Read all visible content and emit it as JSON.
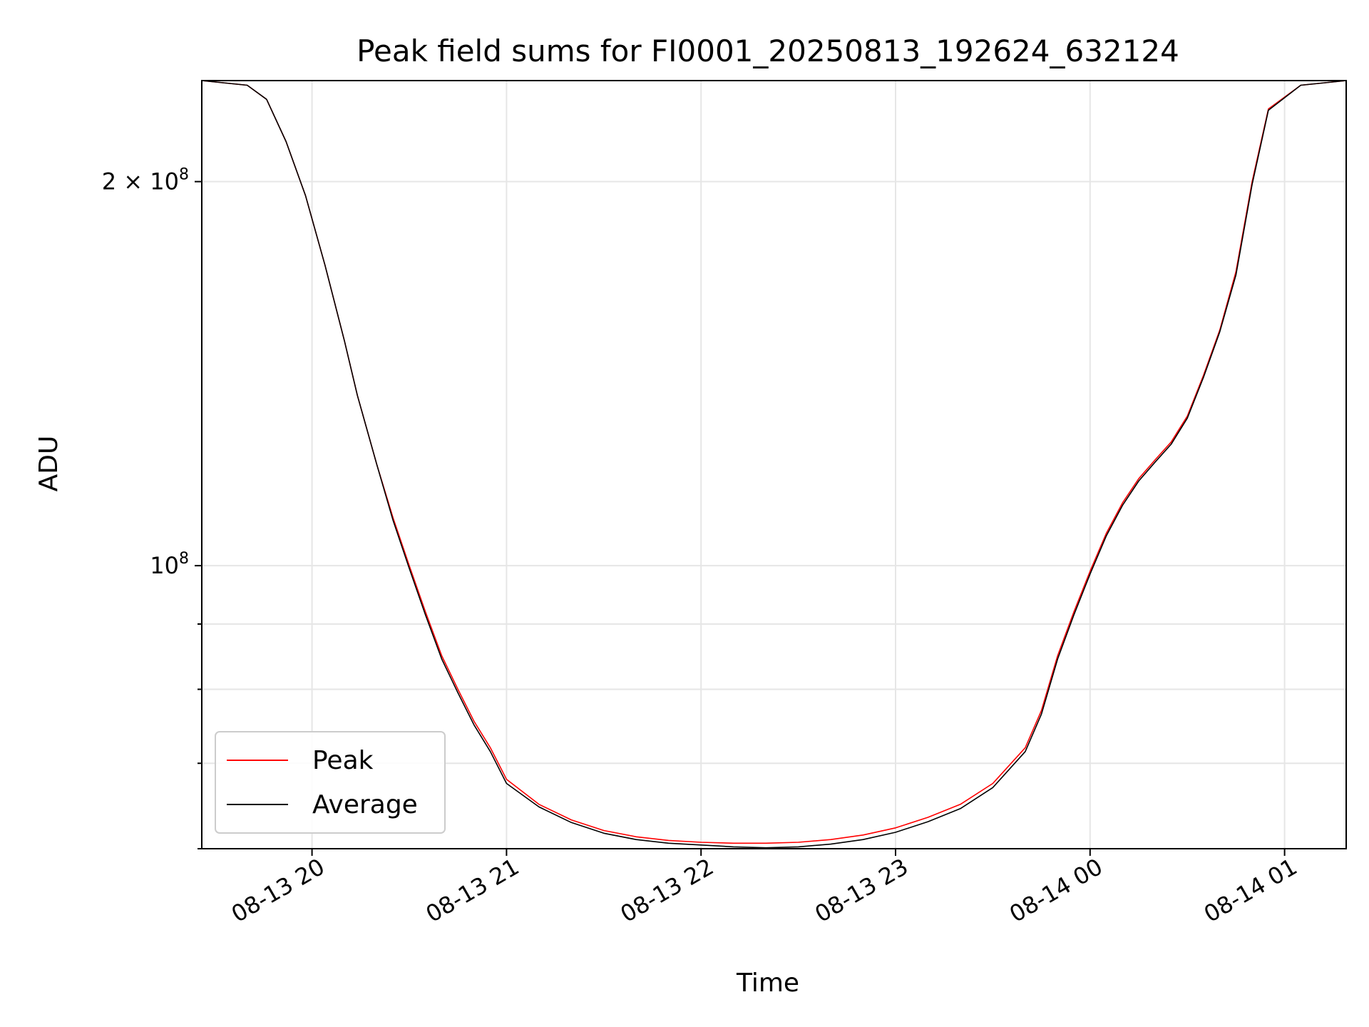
{
  "chart_data": {
    "type": "line",
    "title": "Peak field sums for FI0001_20250813_192624_632124",
    "xlabel": "Time",
    "ylabel": "ADU",
    "x_scale": "time",
    "y_scale": "log",
    "xlim": [
      "2025-08-13 19:26",
      "2025-08-14 01:19"
    ],
    "ylim": [
      60000000,
      240000000
    ],
    "grid": true,
    "legend_position": "lower-left",
    "x_ticks": [
      {
        "value": "2025-08-13 20:00",
        "label": "08-13 20"
      },
      {
        "value": "2025-08-13 21:00",
        "label": "08-13 21"
      },
      {
        "value": "2025-08-13 22:00",
        "label": "08-13 22"
      },
      {
        "value": "2025-08-13 23:00",
        "label": "08-13 23"
      },
      {
        "value": "2025-08-14 00:00",
        "label": "08-14 00"
      },
      {
        "value": "2025-08-14 01:00",
        "label": "08-14 01"
      }
    ],
    "y_ticks_major": [
      {
        "value": 100000000,
        "base": "10",
        "exponent": "8"
      },
      {
        "value": 200000000,
        "mantissa": "2 × ",
        "base": "10",
        "exponent": "8"
      }
    ],
    "y_ticks_minor": [
      60000000,
      70000000,
      80000000,
      90000000
    ],
    "series": [
      {
        "name": "Peak",
        "color": "#ff0000",
        "x": [
          "2025-08-13 19:26",
          "2025-08-13 19:40",
          "2025-08-13 19:46",
          "2025-08-13 19:52",
          "2025-08-13 19:58",
          "2025-08-13 20:04",
          "2025-08-13 20:10",
          "2025-08-13 20:14",
          "2025-08-13 20:20",
          "2025-08-13 20:25",
          "2025-08-13 20:30",
          "2025-08-13 20:35",
          "2025-08-13 20:40",
          "2025-08-13 20:45",
          "2025-08-13 20:50",
          "2025-08-13 20:55",
          "2025-08-13 21:00",
          "2025-08-13 21:10",
          "2025-08-13 21:20",
          "2025-08-13 21:30",
          "2025-08-13 21:40",
          "2025-08-13 21:50",
          "2025-08-13 22:00",
          "2025-08-13 22:10",
          "2025-08-13 22:20",
          "2025-08-13 22:30",
          "2025-08-13 22:40",
          "2025-08-13 22:50",
          "2025-08-13 23:00",
          "2025-08-13 23:10",
          "2025-08-13 23:20",
          "2025-08-13 23:30",
          "2025-08-13 23:40",
          "2025-08-13 23:45",
          "2025-08-13 23:50",
          "2025-08-13 23:55",
          "2025-08-14 00:00",
          "2025-08-14 00:05",
          "2025-08-14 00:10",
          "2025-08-14 00:15",
          "2025-08-14 00:20",
          "2025-08-14 00:25",
          "2025-08-14 00:30",
          "2025-08-14 00:35",
          "2025-08-14 00:40",
          "2025-08-14 00:45",
          "2025-08-14 00:50",
          "2025-08-14 00:55",
          "2025-08-14 01:05",
          "2025-08-14 01:19"
        ],
        "y": [
          240000000,
          238000000,
          232000000,
          215000000,
          195000000,
          172000000,
          150000000,
          136000000,
          120000000,
          109000000,
          100000000,
          92000000,
          85000000,
          80000000,
          75500000,
          72000000,
          68000000,
          65000000,
          63200000,
          62000000,
          61300000,
          60900000,
          60700000,
          60600000,
          60600000,
          60700000,
          61000000,
          61500000,
          62300000,
          63500000,
          65000000,
          67500000,
          72000000,
          77000000,
          85000000,
          92000000,
          99000000,
          106000000,
          112000000,
          117000000,
          121000000,
          125000000,
          131000000,
          141000000,
          153000000,
          170000000,
          200000000,
          228000000,
          238000000,
          240000000
        ]
      },
      {
        "name": "Average",
        "color": "#000000",
        "x": [
          "2025-08-13 19:26",
          "2025-08-13 19:40",
          "2025-08-13 19:46",
          "2025-08-13 19:52",
          "2025-08-13 19:58",
          "2025-08-13 20:04",
          "2025-08-13 20:10",
          "2025-08-13 20:14",
          "2025-08-13 20:20",
          "2025-08-13 20:25",
          "2025-08-13 20:30",
          "2025-08-13 20:35",
          "2025-08-13 20:40",
          "2025-08-13 20:45",
          "2025-08-13 20:50",
          "2025-08-13 20:55",
          "2025-08-13 21:00",
          "2025-08-13 21:10",
          "2025-08-13 21:20",
          "2025-08-13 21:30",
          "2025-08-13 21:40",
          "2025-08-13 21:50",
          "2025-08-13 22:00",
          "2025-08-13 22:10",
          "2025-08-13 22:20",
          "2025-08-13 22:30",
          "2025-08-13 22:40",
          "2025-08-13 22:50",
          "2025-08-13 23:00",
          "2025-08-13 23:10",
          "2025-08-13 23:20",
          "2025-08-13 23:30",
          "2025-08-13 23:40",
          "2025-08-13 23:45",
          "2025-08-13 23:50",
          "2025-08-13 23:55",
          "2025-08-14 00:00",
          "2025-08-14 00:05",
          "2025-08-14 00:10",
          "2025-08-14 00:15",
          "2025-08-14 00:20",
          "2025-08-14 00:25",
          "2025-08-14 00:30",
          "2025-08-14 00:35",
          "2025-08-14 00:40",
          "2025-08-14 00:45",
          "2025-08-14 00:50",
          "2025-08-14 00:55",
          "2025-08-14 01:05",
          "2025-08-14 01:19"
        ],
        "y": [
          240000000,
          238000000,
          232000000,
          215000000,
          195000000,
          172000000,
          150000000,
          136000000,
          120000000,
          108500000,
          99500000,
          91500000,
          84500000,
          79500000,
          75000000,
          71500000,
          67500000,
          64700000,
          62900000,
          61700000,
          61000000,
          60600000,
          60400000,
          60200000,
          60100000,
          60200000,
          60500000,
          61000000,
          61800000,
          63000000,
          64500000,
          67000000,
          71500000,
          76500000,
          84500000,
          91500000,
          98500000,
          105500000,
          111500000,
          116500000,
          120500000,
          124500000,
          130500000,
          140500000,
          152500000,
          169000000,
          199000000,
          227500000,
          238000000,
          240000000
        ]
      }
    ]
  }
}
